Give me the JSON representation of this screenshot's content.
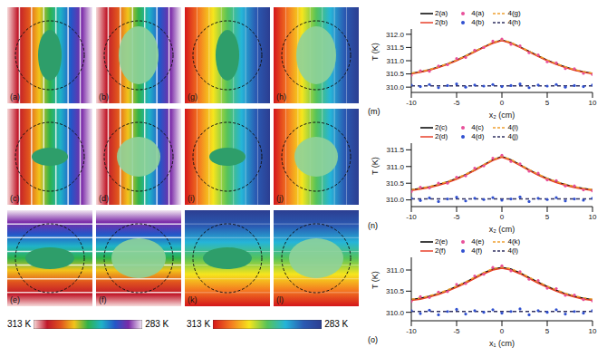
{
  "maps": {
    "labels": [
      "(a)",
      "(b)",
      "(g)",
      "(h)",
      "(c)",
      "(d)",
      "(i)",
      "(j)",
      "(e)",
      "(f)",
      "(k)",
      "(l)"
    ]
  },
  "colorbars": [
    {
      "range": [
        313,
        283
      ],
      "ticks": [
        {
          "value": 313,
          "label": "313 K"
        },
        {
          "value": 283,
          "label": "283 K"
        }
      ]
    },
    {
      "range": [
        313,
        283
      ],
      "ticks": [
        {
          "value": 313,
          "label": "313 K"
        },
        {
          "value": 283,
          "label": "283 K"
        }
      ]
    }
  ],
  "chart_data": [
    {
      "type": "line",
      "title": "(m)",
      "x_label": "x₂ (cm)",
      "y_label": "T (K)",
      "x": [
        -10,
        -9,
        -8,
        -7,
        -6,
        -5,
        -4,
        -3,
        -2,
        -1,
        0,
        1,
        2,
        3,
        4,
        5,
        6,
        7,
        8,
        9,
        10
      ],
      "xlim": [
        -10,
        10
      ],
      "xticks": [
        -10,
        -5,
        0,
        5,
        10
      ],
      "ylim": [
        309.8,
        312.2
      ],
      "yticks": [
        {
          "value": 310,
          "label": "310.0"
        },
        {
          "value": 310.5,
          "label": "310.5"
        },
        {
          "value": 311,
          "label": "311.0"
        },
        {
          "value": 311.5,
          "label": "311.5"
        },
        {
          "value": 312,
          "label": "312.0"
        }
      ],
      "series": [
        {
          "name": "2(a)",
          "type": "line",
          "line_style": "solid",
          "color": "#000000",
          "values": [
            310.52,
            310.58,
            310.66,
            310.76,
            310.88,
            311.02,
            311.18,
            311.35,
            311.52,
            311.68,
            311.78,
            311.68,
            311.52,
            311.35,
            311.18,
            311.02,
            310.88,
            310.76,
            310.66,
            310.58,
            310.52
          ]
        },
        {
          "name": "2(b)",
          "type": "line",
          "line_style": "solid",
          "color": "#e8402a",
          "values": [
            310.5,
            310.56,
            310.64,
            310.74,
            310.86,
            311.0,
            311.16,
            311.33,
            311.5,
            311.66,
            311.76,
            311.66,
            311.5,
            311.33,
            311.16,
            311.0,
            310.86,
            310.74,
            310.64,
            310.56,
            310.5
          ]
        },
        {
          "name": "4(a)",
          "type": "scatter",
          "marker": "circle",
          "color": "#e8509a",
          "values": [
            310.45,
            310.62,
            310.6,
            310.8,
            310.85,
            311.08,
            311.12,
            311.4,
            311.5,
            311.74,
            311.82,
            311.62,
            311.56,
            311.3,
            311.22,
            310.96,
            310.92,
            310.7,
            310.7,
            310.52,
            310.48
          ]
        },
        {
          "name": "4(b)",
          "type": "scatter",
          "marker": "circle",
          "color": "#3050d0",
          "values": [
            310.08,
            310.02,
            310.1,
            309.98,
            310.06,
            310.12,
            310.0,
            310.08,
            310.04,
            310.1,
            310.02,
            310.06,
            310.12,
            309.98,
            310.08,
            310.04,
            310.1,
            310.0,
            310.06,
            310.02,
            310.08
          ]
        },
        {
          "name": "4(g)",
          "type": "line",
          "line_style": "dashed",
          "color": "#f0a030",
          "values": [
            310.53,
            310.59,
            310.67,
            310.77,
            310.89,
            311.03,
            311.19,
            311.36,
            311.53,
            311.69,
            311.8,
            311.69,
            311.53,
            311.36,
            311.19,
            311.03,
            310.89,
            310.77,
            310.67,
            310.59,
            310.53
          ]
        },
        {
          "name": "4(h)",
          "type": "line",
          "line_style": "dashed",
          "color": "#303060",
          "values": [
            310.05,
            310.05,
            310.05,
            310.05,
            310.05,
            310.05,
            310.05,
            310.05,
            310.05,
            310.05,
            310.05,
            310.05,
            310.05,
            310.05,
            310.05,
            310.05,
            310.05,
            310.05,
            310.05,
            310.05,
            310.05
          ]
        }
      ]
    },
    {
      "type": "line",
      "title": "(n)",
      "x_label": "x₂ (cm)",
      "y_label": "T (K)",
      "x": [
        -10,
        -9,
        -8,
        -7,
        -6,
        -5,
        -4,
        -3,
        -2,
        -1,
        0,
        1,
        2,
        3,
        4,
        5,
        6,
        7,
        8,
        9,
        10
      ],
      "xlim": [
        -10,
        10
      ],
      "xticks": [
        -10,
        -5,
        0,
        5,
        10
      ],
      "ylim": [
        309.8,
        311.7
      ],
      "yticks": [
        {
          "value": 310,
          "label": "310.0"
        },
        {
          "value": 310.5,
          "label": "310.5"
        },
        {
          "value": 311,
          "label": "311.0"
        },
        {
          "value": 311.5,
          "label": "311.5"
        }
      ],
      "series": [
        {
          "name": "2(c)",
          "type": "line",
          "line_style": "solid",
          "color": "#000000",
          "values": [
            310.3,
            310.34,
            310.39,
            310.46,
            310.54,
            310.64,
            310.76,
            310.9,
            311.05,
            311.2,
            311.3,
            311.2,
            311.05,
            310.9,
            310.76,
            310.64,
            310.54,
            310.46,
            310.39,
            310.34,
            310.3
          ]
        },
        {
          "name": "2(d)",
          "type": "line",
          "line_style": "solid",
          "color": "#e8402a",
          "values": [
            310.28,
            310.32,
            310.37,
            310.44,
            310.52,
            310.62,
            310.74,
            310.88,
            311.03,
            311.18,
            311.28,
            311.18,
            311.03,
            310.88,
            310.74,
            310.62,
            310.52,
            310.44,
            310.37,
            310.32,
            310.28
          ]
        },
        {
          "name": "4(c)",
          "type": "scatter",
          "marker": "circle",
          "color": "#e8509a",
          "values": [
            310.25,
            310.38,
            310.36,
            310.5,
            310.5,
            310.68,
            310.72,
            310.95,
            311.02,
            311.25,
            311.34,
            311.15,
            311.08,
            310.86,
            310.8,
            310.6,
            310.58,
            310.42,
            310.42,
            310.3,
            310.27
          ]
        },
        {
          "name": "4(d)",
          "type": "scatter",
          "marker": "circle",
          "color": "#3050d0",
          "values": [
            310.05,
            309.98,
            310.06,
            309.95,
            310.03,
            310.08,
            309.97,
            310.05,
            310.01,
            310.07,
            309.99,
            310.03,
            310.09,
            309.95,
            310.05,
            310.01,
            310.07,
            309.97,
            310.03,
            309.99,
            310.05
          ]
        },
        {
          "name": "4(i)",
          "type": "line",
          "line_style": "dashed",
          "color": "#f0a030",
          "values": [
            310.31,
            310.35,
            310.4,
            310.47,
            310.55,
            310.65,
            310.77,
            310.91,
            311.06,
            311.21,
            311.31,
            311.21,
            311.06,
            310.91,
            310.77,
            310.65,
            310.55,
            310.47,
            310.4,
            310.35,
            310.31
          ]
        },
        {
          "name": "4(j)",
          "type": "line",
          "line_style": "dashed",
          "color": "#303060",
          "values": [
            310.03,
            310.03,
            310.03,
            310.03,
            310.03,
            310.03,
            310.03,
            310.03,
            310.03,
            310.03,
            310.03,
            310.03,
            310.03,
            310.03,
            310.03,
            310.03,
            310.03,
            310.03,
            310.03,
            310.03,
            310.03
          ]
        }
      ]
    },
    {
      "type": "line",
      "title": "(o)",
      "x_label": "x₁ (cm)",
      "y_label": "T (K)",
      "x": [
        -10,
        -9,
        -8,
        -7,
        -6,
        -5,
        -4,
        -3,
        -2,
        -1,
        0,
        1,
        2,
        3,
        4,
        5,
        6,
        7,
        8,
        9,
        10
      ],
      "xlim": [
        -10,
        10
      ],
      "xticks": [
        -10,
        -5,
        0,
        5,
        10
      ],
      "ylim": [
        309.8,
        311.3
      ],
      "yticks": [
        {
          "value": 310,
          "label": "310.0"
        },
        {
          "value": 310.5,
          "label": "310.5"
        },
        {
          "value": 311,
          "label": "311.0"
        }
      ],
      "series": [
        {
          "name": "2(e)",
          "type": "line",
          "line_style": "solid",
          "color": "#000000",
          "values": [
            310.3,
            310.33,
            310.38,
            310.44,
            310.52,
            310.61,
            310.71,
            310.82,
            310.93,
            311.02,
            311.06,
            311.02,
            310.93,
            310.82,
            310.71,
            310.61,
            310.52,
            310.44,
            310.38,
            310.33,
            310.3
          ]
        },
        {
          "name": "2(f)",
          "type": "line",
          "line_style": "solid",
          "color": "#e8402a",
          "values": [
            310.28,
            310.31,
            310.36,
            310.42,
            310.5,
            310.59,
            310.69,
            310.8,
            310.91,
            311.0,
            311.04,
            311.0,
            310.91,
            310.8,
            310.69,
            310.59,
            310.5,
            310.42,
            310.36,
            310.31,
            310.28
          ]
        },
        {
          "name": "4(e)",
          "type": "scatter",
          "marker": "circle",
          "color": "#e8509a",
          "values": [
            310.26,
            310.37,
            310.35,
            310.48,
            310.49,
            310.66,
            310.68,
            310.86,
            310.9,
            311.06,
            311.1,
            310.98,
            310.96,
            310.78,
            310.75,
            310.57,
            310.56,
            310.4,
            310.41,
            310.3,
            310.27
          ]
        },
        {
          "name": "4(f)",
          "type": "scatter",
          "marker": "circle",
          "color": "#3050d0",
          "values": [
            310.04,
            309.97,
            310.05,
            309.94,
            310.02,
            310.07,
            309.96,
            310.04,
            310.0,
            310.06,
            309.98,
            310.02,
            310.08,
            309.94,
            310.04,
            310.0,
            310.06,
            309.96,
            310.02,
            309.98,
            310.04
          ]
        },
        {
          "name": "4(k)",
          "type": "line",
          "line_style": "dashed",
          "color": "#f0a030",
          "values": [
            310.31,
            310.34,
            310.39,
            310.45,
            310.53,
            310.62,
            310.72,
            310.83,
            310.94,
            311.03,
            311.07,
            311.03,
            310.94,
            310.83,
            310.72,
            310.62,
            310.53,
            310.45,
            310.39,
            310.34,
            310.31
          ]
        },
        {
          "name": "4(l)",
          "type": "line",
          "line_style": "dashed",
          "color": "#303060",
          "values": [
            310.02,
            310.02,
            310.02,
            310.02,
            310.02,
            310.02,
            310.02,
            310.02,
            310.02,
            310.02,
            310.02,
            310.02,
            310.02,
            310.02,
            310.02,
            310.02,
            310.02,
            310.02,
            310.02,
            310.02,
            310.02
          ]
        }
      ]
    }
  ]
}
